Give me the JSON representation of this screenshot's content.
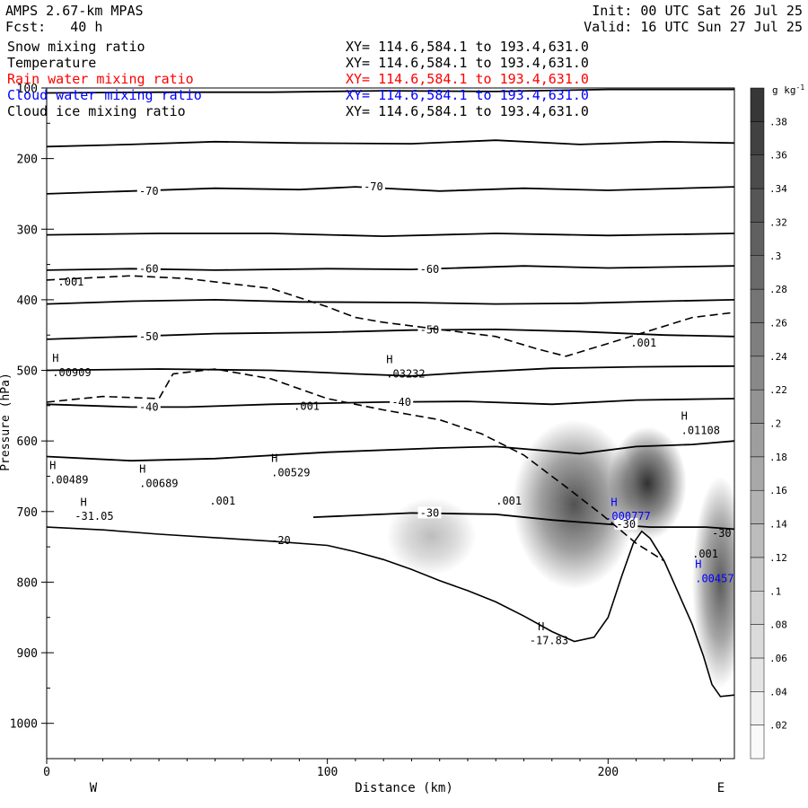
{
  "header": {
    "model": "AMPS 2.67-km MPAS",
    "forecast": "Fcst:   40 h",
    "init": "Init: 00 UTC Sat 26 Jul 25",
    "valid": "Valid: 16 UTC Sun 27 Jul 25"
  },
  "legend": [
    {
      "label": "Snow mixing ratio",
      "xy": "XY= 114.6,584.1 to 193.4,631.0",
      "color": "#000000"
    },
    {
      "label": "Temperature",
      "xy": "XY= 114.6,584.1 to 193.4,631.0",
      "color": "#000000"
    },
    {
      "label": "Rain water mixing ratio",
      "xy": "XY= 114.6,584.1 to 193.4,631.0",
      "color": "#ff0000"
    },
    {
      "label": "Cloud water mixing ratio",
      "xy": "XY= 114.6,584.1 to 193.4,631.0",
      "color": "#0000ff"
    },
    {
      "label": "Cloud ice mixing ratio",
      "xy": "XY= 114.6,584.1 to 193.4,631.0",
      "color": "#000000"
    }
  ],
  "chart_data": {
    "type": "cross-section",
    "xlabel": "Distance (km)",
    "ylabel": "Pressure (hPa)",
    "xlim": [
      0,
      245
    ],
    "ylim": [
      1050,
      100
    ],
    "x_ticks": [
      0,
      100,
      200
    ],
    "y_ticks": [
      100,
      200,
      300,
      400,
      500,
      600,
      700,
      800,
      900,
      1000
    ],
    "endpoint_labels": {
      "left": "W",
      "right": "E"
    },
    "colorbar": {
      "unit": "g kg",
      "unit_exp": "-1",
      "ticks": [
        ".02",
        ".04",
        ".06",
        ".08",
        ".1",
        ".12",
        ".14",
        ".16",
        ".18",
        ".2",
        ".22",
        ".24",
        ".26",
        ".28",
        ".3",
        ".32",
        ".34",
        ".36",
        ".38"
      ],
      "range": [
        0,
        0.4
      ]
    },
    "terrain": [
      [
        0,
        722
      ],
      [
        20,
        726
      ],
      [
        40,
        732
      ],
      [
        60,
        737
      ],
      [
        80,
        742
      ],
      [
        100,
        748
      ],
      [
        110,
        757
      ],
      [
        120,
        768
      ],
      [
        130,
        782
      ],
      [
        140,
        798
      ],
      [
        150,
        812
      ],
      [
        160,
        828
      ],
      [
        170,
        848
      ],
      [
        180,
        870
      ],
      [
        188,
        884
      ],
      [
        195,
        878
      ],
      [
        200,
        850
      ],
      [
        205,
        790
      ],
      [
        209,
        745
      ],
      [
        212,
        728
      ],
      [
        215,
        738
      ],
      [
        220,
        770
      ],
      [
        225,
        815
      ],
      [
        230,
        860
      ],
      [
        234,
        905
      ],
      [
        237,
        945
      ],
      [
        240,
        962
      ],
      [
        245,
        960
      ]
    ],
    "temperature_contours": [
      {
        "label": "",
        "points": [
          [
            0,
            107
          ],
          [
            40,
            106
          ],
          [
            80,
            106
          ],
          [
            120,
            104
          ],
          [
            160,
            105
          ],
          [
            200,
            102
          ],
          [
            245,
            102
          ]
        ]
      },
      {
        "label": "",
        "points": [
          [
            0,
            183
          ],
          [
            30,
            180
          ],
          [
            60,
            176
          ],
          [
            90,
            178
          ],
          [
            130,
            179
          ],
          [
            160,
            174
          ],
          [
            190,
            180
          ],
          [
            220,
            176
          ],
          [
            245,
            178
          ]
        ]
      },
      {
        "label": "-70",
        "points": [
          [
            0,
            250
          ],
          [
            30,
            246
          ],
          [
            60,
            242
          ],
          [
            90,
            244
          ],
          [
            110,
            240
          ],
          [
            140,
            246
          ],
          [
            170,
            242
          ],
          [
            200,
            245
          ],
          [
            245,
            240
          ]
        ]
      },
      {
        "label": "",
        "points": [
          [
            0,
            308
          ],
          [
            40,
            306
          ],
          [
            80,
            306
          ],
          [
            120,
            310
          ],
          [
            160,
            306
          ],
          [
            200,
            309
          ],
          [
            245,
            306
          ]
        ]
      },
      {
        "label": "-60",
        "points": [
          [
            0,
            358
          ],
          [
            30,
            356
          ],
          [
            60,
            358
          ],
          [
            100,
            356
          ],
          [
            130,
            357
          ],
          [
            170,
            352
          ],
          [
            200,
            355
          ],
          [
            245,
            352
          ]
        ]
      },
      {
        "label": "",
        "points": [
          [
            0,
            406
          ],
          [
            30,
            402
          ],
          [
            60,
            400
          ],
          [
            90,
            403
          ],
          [
            130,
            404
          ],
          [
            160,
            406
          ],
          [
            190,
            405
          ],
          [
            220,
            402
          ],
          [
            245,
            400
          ]
        ]
      },
      {
        "label": "-50",
        "points": [
          [
            0,
            456
          ],
          [
            30,
            452
          ],
          [
            60,
            448
          ],
          [
            100,
            446
          ],
          [
            130,
            443
          ],
          [
            160,
            442
          ],
          [
            190,
            445
          ],
          [
            220,
            450
          ],
          [
            245,
            452
          ]
        ]
      },
      {
        "label": "",
        "points": [
          [
            0,
            500
          ],
          [
            40,
            498
          ],
          [
            80,
            500
          ],
          [
            110,
            505
          ],
          [
            130,
            508
          ],
          [
            150,
            503
          ],
          [
            180,
            497
          ],
          [
            210,
            495
          ],
          [
            245,
            494
          ]
        ]
      },
      {
        "label": "-40",
        "points": [
          [
            0,
            548
          ],
          [
            30,
            552
          ],
          [
            50,
            552
          ],
          [
            80,
            548
          ],
          [
            120,
            545
          ],
          [
            150,
            544
          ],
          [
            180,
            548
          ],
          [
            210,
            542
          ],
          [
            245,
            540
          ]
        ]
      },
      {
        "label": "",
        "points": [
          [
            0,
            622
          ],
          [
            30,
            628
          ],
          [
            60,
            625
          ],
          [
            100,
            616
          ],
          [
            140,
            610
          ],
          [
            160,
            608
          ],
          [
            190,
            618
          ],
          [
            210,
            608
          ],
          [
            230,
            605
          ],
          [
            245,
            600
          ]
        ]
      },
      {
        "label": "-30",
        "points": [
          [
            95,
            708
          ],
          [
            130,
            702
          ],
          [
            160,
            704
          ],
          [
            180,
            712
          ],
          [
            200,
            718
          ],
          [
            215,
            722
          ],
          [
            235,
            722
          ],
          [
            245,
            725
          ]
        ]
      }
    ],
    "shading_blobs": [
      {
        "center": [
          137,
          735
        ],
        "radius": [
          16,
          55
        ],
        "peak": 0.12
      },
      {
        "center": [
          188,
          690
        ],
        "radius": [
          22,
          120
        ],
        "peak": 0.32
      },
      {
        "center": [
          214,
          660
        ],
        "radius": [
          14,
          80
        ],
        "peak": 0.38
      },
      {
        "center": [
          240,
          800
        ],
        "radius": [
          10,
          150
        ],
        "peak": 0.3
      }
    ],
    "snow_contour": [
      [
        0,
        372
      ],
      [
        30,
        366
      ],
      [
        50,
        370
      ],
      [
        80,
        384
      ],
      [
        100,
        410
      ],
      [
        110,
        425
      ],
      [
        120,
        432
      ],
      [
        140,
        442
      ],
      [
        160,
        452
      ],
      [
        175,
        470
      ],
      [
        185,
        480
      ],
      [
        200,
        462
      ],
      [
        218,
        440
      ],
      [
        230,
        425
      ],
      [
        245,
        418
      ]
    ],
    "snow_contour_2": [
      [
        0,
        545
      ],
      [
        20,
        537
      ],
      [
        40,
        540
      ],
      [
        45,
        505
      ],
      [
        60,
        498
      ],
      [
        80,
        512
      ],
      [
        100,
        540
      ],
      [
        120,
        556
      ],
      [
        140,
        570
      ],
      [
        155,
        590
      ],
      [
        170,
        620
      ],
      [
        185,
        665
      ],
      [
        198,
        705
      ],
      [
        210,
        745
      ],
      [
        220,
        770
      ]
    ],
    "annotations": [
      {
        "text": "H",
        "x": 2,
        "y": 488,
        "color": "#000000"
      },
      {
        "text": ".00909",
        "x": 2,
        "y": 508,
        "color": "#000000"
      },
      {
        "text": "H",
        "x": 121,
        "y": 490,
        "color": "#000000"
      },
      {
        "text": ".03232",
        "x": 121,
        "y": 510,
        "color": "#000000"
      },
      {
        "text": "H",
        "x": 1,
        "y": 640,
        "color": "#000000"
      },
      {
        "text": ".00489",
        "x": 1,
        "y": 660,
        "color": "#000000"
      },
      {
        "text": "H",
        "x": 33,
        "y": 645,
        "color": "#000000"
      },
      {
        "text": ".00689",
        "x": 33,
        "y": 665,
        "color": "#000000"
      },
      {
        "text": "H",
        "x": 80,
        "y": 630,
        "color": "#000000"
      },
      {
        "text": ".00529",
        "x": 80,
        "y": 650,
        "color": "#000000"
      },
      {
        "text": "H",
        "x": 12,
        "y": 692,
        "color": "#000000"
      },
      {
        "text": "-31.05",
        "x": 10,
        "y": 712,
        "color": "#000000"
      },
      {
        "text": "H",
        "x": 226,
        "y": 570,
        "color": "#000000"
      },
      {
        "text": ".01108",
        "x": 226,
        "y": 590,
        "color": "#000000"
      },
      {
        "text": "H",
        "x": 201,
        "y": 692,
        "color": "#0000ff"
      },
      {
        "text": ".000777",
        "x": 199,
        "y": 712,
        "color": "#0000ff"
      },
      {
        "text": "H",
        "x": 231,
        "y": 780,
        "color": "#0000ff"
      },
      {
        "text": ".00457",
        "x": 231,
        "y": 800,
        "color": "#0000ff"
      },
      {
        "text": "H",
        "x": 175,
        "y": 868,
        "color": "#000000"
      },
      {
        "text": "-17.83",
        "x": 172,
        "y": 888,
        "color": "#000000"
      },
      {
        "text": ".001",
        "x": 4,
        "y": 380,
        "color": "#000000"
      },
      {
        "text": ".001",
        "x": 88,
        "y": 556,
        "color": "#000000"
      },
      {
        "text": ".001",
        "x": 58,
        "y": 690,
        "color": "#000000"
      },
      {
        "text": ".001",
        "x": 160,
        "y": 690,
        "color": "#000000"
      },
      {
        "text": ".001",
        "x": 208,
        "y": 466,
        "color": "#000000"
      },
      {
        "text": ".001",
        "x": 230,
        "y": 765,
        "color": "#000000"
      },
      {
        "text": "-30",
        "x": 237,
        "y": 736,
        "color": "#000000"
      },
      {
        "text": "-20",
        "x": 80,
        "y": 746,
        "color": "#000000"
      }
    ]
  }
}
